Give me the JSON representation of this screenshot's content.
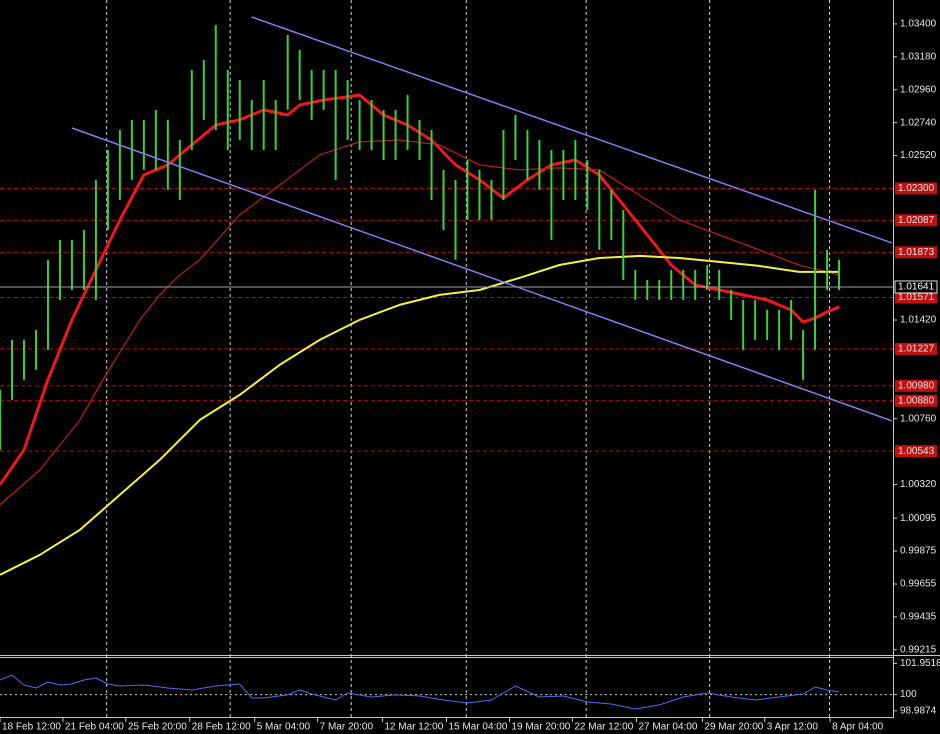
{
  "chart_data": [
    {
      "type": "price",
      "xlim": [
        0,
        74.5
      ],
      "ylim": [
        0.9918,
        1.0356
      ],
      "yticks": [
        {
          "value": 1.034,
          "label": "1.03400"
        },
        {
          "value": 1.0318,
          "label": "1.03180"
        },
        {
          "value": 1.0296,
          "label": "1.02960"
        },
        {
          "value": 1.0274,
          "label": "1.02740"
        },
        {
          "value": 1.0252,
          "label": "1.02520"
        },
        {
          "value": 1.0142,
          "label": "1.01420"
        },
        {
          "value": 1.0076,
          "label": "1.00760"
        },
        {
          "value": 1.0032,
          "label": "1.00320"
        },
        {
          "value": 1.00095,
          "label": "1.00095"
        },
        {
          "value": 0.99875,
          "label": "0.99875"
        },
        {
          "value": 0.99655,
          "label": "0.99655"
        },
        {
          "value": 0.99435,
          "label": "0.99435"
        },
        {
          "value": 0.99215,
          "label": "0.99215"
        }
      ],
      "xticks": [
        {
          "value": 0,
          "label": "18 Feb 12:00"
        },
        {
          "value": 5.25,
          "label": "21 Feb 04:00"
        },
        {
          "value": 10.5,
          "label": "25 Feb 20:00"
        },
        {
          "value": 15.83,
          "label": "28 Feb 12:00"
        },
        {
          "value": 21.25,
          "label": "5 Mar 04:00"
        },
        {
          "value": 26.5,
          "label": "7 Mar 20:00"
        },
        {
          "value": 31.9,
          "label": "12 Mar 12:00"
        },
        {
          "value": 37.25,
          "label": "15 Mar 04:00"
        },
        {
          "value": 42.5,
          "label": "19 Mar 20:00"
        },
        {
          "value": 47.75,
          "label": "22 Mar 12:00"
        },
        {
          "value": 53.1,
          "label": "27 Mar 04:00"
        },
        {
          "value": 58.6,
          "label": "29 Mar 20:00"
        },
        {
          "value": 63.8,
          "label": "3 Apr 12:00"
        },
        {
          "value": 69.25,
          "label": "8 Apr 04:00"
        }
      ],
      "xgrid": [
        8.9,
        19.2,
        29.3,
        38.9,
        48.9,
        59.2,
        69.2
      ],
      "bars": {
        "color": "#3ad23a",
        "high": [
          1.00953,
          1.01287,
          1.01287,
          1.01354,
          1.01822,
          1.01956,
          1.01956,
          1.02022,
          1.02357,
          1.02557,
          1.02691,
          1.02758,
          1.02758,
          1.02825,
          1.02758,
          1.02624,
          1.03092,
          1.03159,
          1.03393,
          1.03092,
          1.03025,
          1.02891,
          1.03025,
          1.02891,
          1.03326,
          1.03226,
          1.03092,
          1.03092,
          1.03092,
          1.03025,
          1.02891,
          1.02891,
          1.02825,
          1.02825,
          1.02925,
          1.02758,
          1.02691,
          1.02424,
          1.02357,
          1.0249,
          1.02424,
          1.02357,
          1.02691,
          1.02791,
          1.02691,
          1.02624,
          1.02557,
          1.02557,
          1.02624,
          1.0249,
          1.02424,
          1.0229,
          1.02156,
          1.01755,
          1.01688,
          1.01688,
          1.01755,
          1.01755,
          1.01755,
          1.01788,
          1.01755,
          1.01621,
          1.01554,
          1.01554,
          1.01488,
          1.01488,
          1.01554,
          1.01354,
          1.0229,
          1.01889,
          1.01822
        ],
        "low": [
          1.00552,
          1.00886,
          1.0102,
          1.01087,
          1.0122,
          1.01554,
          1.01621,
          1.01621,
          1.01554,
          1.02022,
          1.02223,
          1.02357,
          1.02424,
          1.02424,
          1.0229,
          1.02223,
          1.02557,
          1.02758,
          1.02691,
          1.02557,
          1.02624,
          1.02557,
          1.02557,
          1.02557,
          1.02825,
          1.02891,
          1.02758,
          1.02825,
          1.02357,
          1.02624,
          1.02557,
          1.02557,
          1.0249,
          1.0249,
          1.02557,
          1.0249,
          1.02223,
          1.02022,
          1.01822,
          1.02089,
          1.02089,
          1.02089,
          1.02223,
          1.0249,
          1.02357,
          1.0229,
          1.01956,
          1.02223,
          1.02223,
          1.02156,
          1.01889,
          1.01956,
          1.01688,
          1.01554,
          1.01554,
          1.01554,
          1.01554,
          1.01554,
          1.01554,
          1.01621,
          1.01554,
          1.01421,
          1.0122,
          1.01287,
          1.01287,
          1.0122,
          1.01287,
          1.0102,
          1.0122,
          1.01621,
          1.01621
        ]
      },
      "lines": [
        {
          "color": "#f01818",
          "width": 3,
          "x": [
            0,
            2,
            4,
            6,
            8,
            10,
            12,
            14,
            16,
            18,
            20,
            22,
            24,
            25,
            27,
            29,
            30,
            32,
            34,
            36,
            38,
            40,
            42,
            44,
            46,
            48,
            50,
            52,
            54,
            56,
            58,
            60,
            62,
            64,
            66,
            67,
            68,
            69,
            70
          ],
          "values": [
            1.00318,
            1.00552,
            1.0102,
            1.01421,
            1.01755,
            1.02089,
            1.0239,
            1.02457,
            1.02591,
            1.02724,
            1.02758,
            1.02825,
            1.02791,
            1.02858,
            1.02891,
            1.02912,
            1.02925,
            1.02791,
            1.02724,
            1.02624,
            1.02457,
            1.02357,
            1.02236,
            1.02357,
            1.02457,
            1.0249,
            1.0239,
            1.0219,
            1.01989,
            1.01788,
            1.01655,
            1.01621,
            1.01588,
            1.01554,
            1.01488,
            1.01407,
            1.01434,
            1.01474,
            1.01508
          ]
        },
        {
          "color": "#b02020",
          "width": 1.3,
          "x": [
            0,
            3.33,
            6.67,
            8.33,
            11.67,
            13.33,
            15,
            16.67,
            20,
            23.33,
            26.67,
            30,
            33.33,
            36.67,
            40,
            43.33,
            46.67,
            50,
            53.33,
            56.67,
            60,
            63.33,
            66.67,
            70
          ],
          "values": [
            1.00184,
            1.00418,
            1.00752,
            1.00986,
            1.01421,
            1.01588,
            1.01722,
            1.01822,
            1.02123,
            1.02323,
            1.02524,
            1.02611,
            1.02624,
            1.02591,
            1.02457,
            1.02424,
            1.02437,
            1.02424,
            1.02256,
            1.02089,
            1.01989,
            1.01889,
            1.01788,
            1.01722
          ]
        },
        {
          "color": "#f4f040",
          "width": 2,
          "x": [
            0,
            3.33,
            6.67,
            10,
            13.33,
            16.67,
            20,
            23.33,
            26.67,
            30,
            33.33,
            36.67,
            40,
            43.33,
            46.67,
            50,
            53.33,
            56.67,
            60,
            63.33,
            66.67,
            70
          ],
          "values": [
            0.99716,
            0.9985,
            1.00017,
            1.00251,
            1.00485,
            1.00752,
            1.00919,
            1.0112,
            1.01287,
            1.01421,
            1.01521,
            1.01588,
            1.01621,
            1.01702,
            1.01788,
            1.01835,
            1.01849,
            1.01835,
            1.01809,
            1.01782,
            1.01742,
            1.01742
          ]
        }
      ],
      "channels": [
        {
          "color": "#8080f0",
          "x": [
            21,
            74.4
          ],
          "values": [
            1.03446,
            1.01936
          ]
        },
        {
          "color": "#8080f0",
          "x": [
            6,
            74.4
          ],
          "values": [
            1.02704,
            1.00746
          ]
        }
      ],
      "level_color": "#c01010",
      "levels": [
        {
          "value": 1.023,
          "label": "1.02300"
        },
        {
          "value": 1.02087,
          "label": "1.02087"
        },
        {
          "value": 1.01873,
          "label": "1.01873"
        },
        {
          "value": 1.01571,
          "label": "1.01571"
        },
        {
          "value": 1.01227,
          "label": "1.01227"
        },
        {
          "value": 1.0098,
          "label": "1.00980"
        },
        {
          "value": 1.0088,
          "label": "1.00880"
        },
        {
          "value": 1.00543,
          "label": "1.00543"
        }
      ],
      "current": {
        "value": 1.01641,
        "label": "1.01641"
      }
    },
    {
      "type": "line",
      "color": "#4a6ef0",
      "xlim": [
        0,
        74.5
      ],
      "ylim": [
        98.6,
        102.35
      ],
      "yticks": [
        101.9518,
        100,
        98.9874
      ],
      "levels": [
        100
      ],
      "x": [
        0,
        1,
        2,
        3,
        4,
        5,
        6,
        7,
        8,
        9,
        10,
        12,
        14,
        16,
        18,
        20,
        21,
        22,
        24,
        25,
        26,
        28,
        29,
        31,
        33,
        35,
        37,
        39,
        41,
        43,
        45,
        47,
        49,
        51,
        53,
        55,
        57,
        59,
        61,
        63,
        65,
        67,
        68,
        69,
        70
      ],
      "values": [
        100.91,
        101.225,
        100.6,
        100.41,
        100.79,
        100.6,
        100.66,
        100.91,
        101.04,
        100.66,
        100.54,
        100.6,
        100.41,
        100.29,
        100.54,
        100.66,
        99.79,
        99.79,
        99.98,
        100.29,
        100.04,
        99.66,
        100.1,
        99.85,
        99.98,
        99.91,
        99.66,
        99.475,
        99.66,
        100.54,
        99.85,
        99.91,
        99.54,
        99.41,
        99.1,
        99.35,
        99.85,
        100.1,
        99.85,
        99.66,
        99.85,
        100.04,
        100.475,
        100.29,
        100.16
      ]
    }
  ]
}
